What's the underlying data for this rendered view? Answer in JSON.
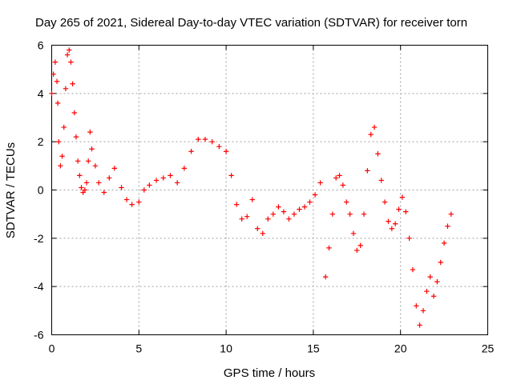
{
  "chart_data": {
    "type": "scatter",
    "title": "Day 265 of 2021, Sidereal Day-to-day VTEC variation (SDTVAR) for receiver torn",
    "xlabel": "GPS time / hours",
    "ylabel": "SDTVAR / TECUs",
    "xlim": [
      0,
      25
    ],
    "ylim": [
      -6,
      6
    ],
    "xticks": [
      "0",
      "5",
      "10",
      "15",
      "20",
      "25"
    ],
    "yticks": [
      "-6",
      "-4",
      "-2",
      "0",
      "2",
      "4",
      "6"
    ],
    "grid": true,
    "marker": "+",
    "color": "#ff0000",
    "series": [
      {
        "name": "SDTVAR",
        "x": [
          0.0,
          0.1,
          0.2,
          0.3,
          0.35,
          0.4,
          0.5,
          0.6,
          0.7,
          0.8,
          0.9,
          1.0,
          1.1,
          1.2,
          1.3,
          1.4,
          1.5,
          1.6,
          1.7,
          1.8,
          1.9,
          2.0,
          2.1,
          2.2,
          2.3,
          2.5,
          2.7,
          3.0,
          3.3,
          3.6,
          4.0,
          4.3,
          4.6,
          5.0,
          5.3,
          5.6,
          6.0,
          6.4,
          6.8,
          7.2,
          7.6,
          8.0,
          8.4,
          8.8,
          9.2,
          9.6,
          10.0,
          10.3,
          10.6,
          10.9,
          11.2,
          11.5,
          11.8,
          12.1,
          12.4,
          12.7,
          13.0,
          13.3,
          13.6,
          13.9,
          14.2,
          14.5,
          14.8,
          15.1,
          15.4,
          15.7,
          15.9,
          16.1,
          16.3,
          16.5,
          16.7,
          16.9,
          17.1,
          17.3,
          17.5,
          17.7,
          17.9,
          18.1,
          18.3,
          18.5,
          18.7,
          18.9,
          19.1,
          19.3,
          19.5,
          19.7,
          19.9,
          20.1,
          20.3,
          20.5,
          20.7,
          20.9,
          21.1,
          21.3,
          21.5,
          21.7,
          21.9,
          22.1,
          22.3,
          22.5,
          22.7,
          22.9
        ],
        "y": [
          4.0,
          4.8,
          5.3,
          4.5,
          3.6,
          2.0,
          1.0,
          1.4,
          2.6,
          4.2,
          5.6,
          5.8,
          5.3,
          4.4,
          3.2,
          2.2,
          1.2,
          0.6,
          0.1,
          -0.1,
          0.0,
          0.3,
          1.2,
          2.4,
          1.7,
          1.0,
          0.3,
          -0.1,
          0.5,
          0.9,
          0.1,
          -0.4,
          -0.6,
          -0.5,
          0.0,
          0.2,
          0.4,
          0.5,
          0.6,
          0.3,
          0.9,
          1.6,
          2.1,
          2.1,
          2.0,
          1.8,
          1.6,
          0.6,
          -0.6,
          -1.2,
          -1.1,
          -0.4,
          -1.6,
          -1.8,
          -1.2,
          -1.0,
          -0.7,
          -0.9,
          -1.2,
          -1.0,
          -0.8,
          -0.7,
          -0.5,
          -0.2,
          0.3,
          -3.6,
          -2.4,
          -1.0,
          0.5,
          0.6,
          0.2,
          -0.5,
          -1.0,
          -1.8,
          -2.5,
          -2.3,
          -1.0,
          0.8,
          2.3,
          2.6,
          1.5,
          0.4,
          -0.5,
          -1.3,
          -1.6,
          -1.4,
          -0.8,
          -0.3,
          -0.9,
          -2.0,
          -3.3,
          -4.8,
          -5.6,
          -5.0,
          -4.2,
          -3.6,
          -4.4,
          -3.8,
          -3.0,
          -2.2,
          -1.5,
          -1.0
        ]
      }
    ]
  }
}
